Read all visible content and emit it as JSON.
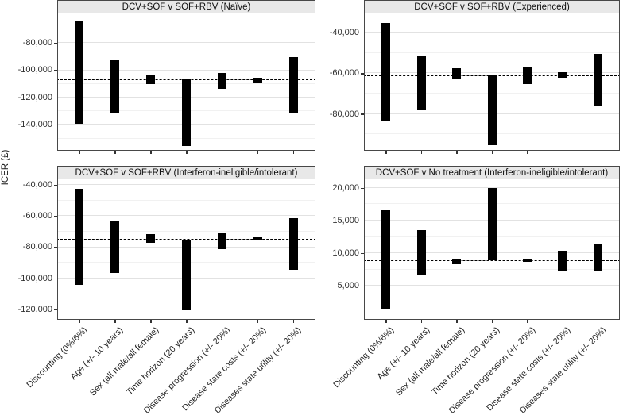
{
  "figure": {
    "ylabel": "ICER (£)",
    "colors": {
      "bar": "#000000",
      "strip_bg": "#e8e8e8",
      "panel_border": "#474747",
      "grid_major": "#e2e2e2",
      "grid_minor": "#f1f1f1",
      "baseline_dashed": "#000000",
      "tick": "#333333",
      "text": "#1a1a1a"
    }
  },
  "categories": [
    "Discounting (0%/6%)",
    "Age (+/- 10 years)",
    "Sex (all male/all female)",
    "Time horizon (20 years)",
    "Disease progression (+/- 20%)",
    "Disease state costs (+/- 20%)",
    "Diseases state utility (+/- 20%)"
  ],
  "chart_data": [
    {
      "type": "bar",
      "subtype": "tornado-range",
      "title": "DCV+SOF v SOF+RBV (Naïve)",
      "ylabel": "ICER (£)",
      "ylim": [
        -159000,
        -59000
      ],
      "grid": true,
      "baseline_dashed": -107500,
      "yticks": [
        {
          "v": -80000,
          "label": "-80,000"
        },
        {
          "v": -100000,
          "label": "-100,000"
        },
        {
          "v": -120000,
          "label": "-120,000"
        },
        {
          "v": -140000,
          "label": "-140,000"
        }
      ],
      "bars": [
        {
          "param": "Discounting (0%/6%)",
          "low": -140000,
          "high": -65000
        },
        {
          "param": "Age (+/- 10 years)",
          "low": -132000,
          "high": -93500
        },
        {
          "param": "Sex (all male/all female)",
          "low": -110500,
          "high": -103500
        },
        {
          "param": "Time horizon (20 years)",
          "low": -156000,
          "high": -107500
        },
        {
          "param": "Disease progression (+/- 20%)",
          "low": -114500,
          "high": -102500
        },
        {
          "param": "Disease state costs (+/- 20%)",
          "low": -109500,
          "high": -106000
        },
        {
          "param": "Diseases state utility (+/- 20%)",
          "low": -132000,
          "high": -91000
        }
      ]
    },
    {
      "type": "bar",
      "subtype": "tornado-range",
      "title": "DCV+SOF v SOF+RBV (Experienced)",
      "ylabel": "ICER (£)",
      "ylim": [
        -98000,
        -31000
      ],
      "grid": true,
      "baseline_dashed": -61500,
      "yticks": [
        {
          "v": -40000,
          "label": "-40,000"
        },
        {
          "v": -60000,
          "label": "-60,000"
        },
        {
          "v": -80000,
          "label": "-80,000"
        }
      ],
      "bars": [
        {
          "param": "Discounting (0%/6%)",
          "low": -84000,
          "high": -35500
        },
        {
          "param": "Age (+/- 10 years)",
          "low": -78000,
          "high": -52000
        },
        {
          "param": "Sex (all male/all female)",
          "low": -63000,
          "high": -58000
        },
        {
          "param": "Time horizon (20 years)",
          "low": -95500,
          "high": -61500
        },
        {
          "param": "Disease progression (+/- 20%)",
          "low": -65500,
          "high": -57000
        },
        {
          "param": "Disease state costs (+/- 20%)",
          "low": -62500,
          "high": -60000
        },
        {
          "param": "Diseases state utility (+/- 20%)",
          "low": -76000,
          "high": -51000
        }
      ]
    },
    {
      "type": "bar",
      "subtype": "tornado-range",
      "title": "DCV+SOF v SOF+RBV (Interferon-ineligible/intolerant)",
      "ylabel": "ICER (£)",
      "ylim": [
        -126500,
        -37000
      ],
      "grid": true,
      "baseline_dashed": -75000,
      "yticks": [
        {
          "v": -40000,
          "label": "-40,000"
        },
        {
          "v": -60000,
          "label": "-60,000"
        },
        {
          "v": -80000,
          "label": "-80,000"
        },
        {
          "v": -100000,
          "label": "-100,000"
        },
        {
          "v": -120000,
          "label": "-120,000"
        }
      ],
      "bars": [
        {
          "param": "Discounting (0%/6%)",
          "low": -104500,
          "high": -43000
        },
        {
          "param": "Age (+/- 10 years)",
          "low": -97000,
          "high": -63500
        },
        {
          "param": "Sex (all male/all female)",
          "low": -77500,
          "high": -72000
        },
        {
          "param": "Time horizon (20 years)",
          "low": -121000,
          "high": -75500
        },
        {
          "param": "Disease progression (+/- 20%)",
          "low": -81500,
          "high": -71000
        },
        {
          "param": "Disease state costs (+/- 20%)",
          "low": -76000,
          "high": -74000
        },
        {
          "param": "Diseases state utility (+/- 20%)",
          "low": -95000,
          "high": -62000
        }
      ]
    },
    {
      "type": "bar",
      "subtype": "tornado-range",
      "title": "DCV+SOF v No treatment (Interferon-ineligible/intolerant)",
      "ylabel": "ICER (£)",
      "ylim": [
        -200,
        21200
      ],
      "grid": true,
      "baseline_dashed": 8800,
      "yticks": [
        {
          "v": 5000,
          "label": "5,000"
        },
        {
          "v": 10000,
          "label": "10,000"
        },
        {
          "v": 15000,
          "label": "15,000"
        },
        {
          "v": 20000,
          "label": "20,000"
        }
      ],
      "bars": [
        {
          "param": "Discounting (0%/6%)",
          "low": 1200,
          "high": 16400
        },
        {
          "param": "Age (+/- 10 years)",
          "low": 6600,
          "high": 13400
        },
        {
          "param": "Sex (all male/all female)",
          "low": 8200,
          "high": 9100
        },
        {
          "param": "Time horizon (20 years)",
          "low": 8800,
          "high": 19900
        },
        {
          "param": "Disease progression (+/- 20%)",
          "low": 8600,
          "high": 9100
        },
        {
          "param": "Disease state costs (+/- 20%)",
          "low": 7200,
          "high": 10300
        },
        {
          "param": "Diseases state utility (+/- 20%)",
          "low": 7200,
          "high": 11200
        }
      ]
    }
  ]
}
